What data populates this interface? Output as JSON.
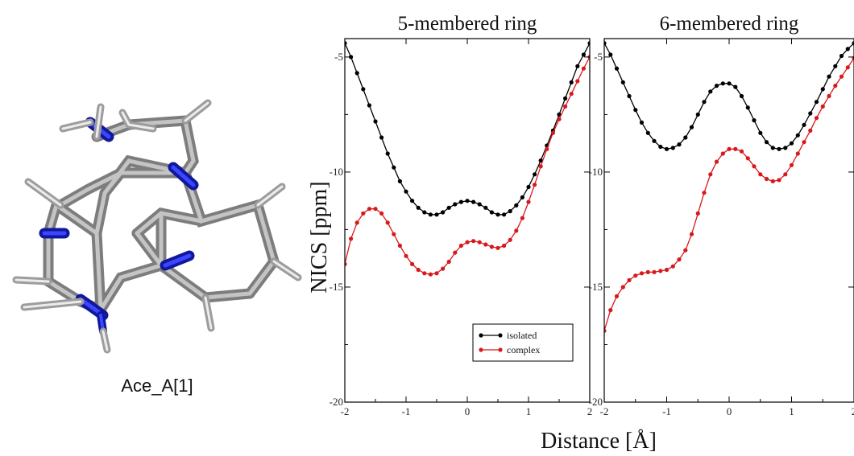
{
  "molecule": {
    "label": "Ace_A[1]"
  },
  "ylabel": "NICS [ppm]",
  "xlabel": "Distance [Å]",
  "colors": {
    "isolated": "#000000",
    "complex": "#d7191c",
    "nitrogen": "#1f2bd6",
    "carbon": "#9a9a9a",
    "hydrogen": "#e6e6e6"
  },
  "chart_data": [
    {
      "type": "line",
      "title": "5-membered ring",
      "xlim": [
        -2,
        2
      ],
      "ylim": [
        -20,
        -4.2
      ],
      "xticks": [
        -2,
        -1,
        0,
        1,
        2
      ],
      "yticks": [
        -20,
        -15,
        -10,
        -5
      ],
      "legend": {
        "placement": "bottom-right",
        "entries": [
          "isolated",
          "complex"
        ]
      },
      "series": [
        {
          "name": "isolated",
          "color": "#000000",
          "points": [
            [
              -2.0,
              -4.4
            ],
            [
              -1.9,
              -5.0
            ],
            [
              -1.8,
              -5.7
            ],
            [
              -1.7,
              -6.4
            ],
            [
              -1.6,
              -7.1
            ],
            [
              -1.5,
              -7.8
            ],
            [
              -1.4,
              -8.5
            ],
            [
              -1.3,
              -9.2
            ],
            [
              -1.2,
              -9.8
            ],
            [
              -1.1,
              -10.4
            ],
            [
              -1.0,
              -10.85
            ],
            [
              -0.9,
              -11.25
            ],
            [
              -0.8,
              -11.55
            ],
            [
              -0.7,
              -11.75
            ],
            [
              -0.6,
              -11.85
            ],
            [
              -0.5,
              -11.85
            ],
            [
              -0.4,
              -11.75
            ],
            [
              -0.3,
              -11.55
            ],
            [
              -0.2,
              -11.4
            ],
            [
              -0.1,
              -11.3
            ],
            [
              0.0,
              -11.25
            ],
            [
              0.1,
              -11.3
            ],
            [
              0.2,
              -11.4
            ],
            [
              0.3,
              -11.55
            ],
            [
              0.4,
              -11.75
            ],
            [
              0.5,
              -11.85
            ],
            [
              0.6,
              -11.85
            ],
            [
              0.7,
              -11.7
            ],
            [
              0.8,
              -11.45
            ],
            [
              0.9,
              -11.1
            ],
            [
              1.0,
              -10.65
            ],
            [
              1.1,
              -10.1
            ],
            [
              1.2,
              -9.5
            ],
            [
              1.3,
              -8.85
            ],
            [
              1.4,
              -8.2
            ],
            [
              1.5,
              -7.5
            ],
            [
              1.6,
              -6.8
            ],
            [
              1.7,
              -6.1
            ],
            [
              1.8,
              -5.4
            ],
            [
              1.9,
              -4.9
            ],
            [
              2.0,
              -4.4
            ]
          ]
        },
        {
          "name": "complex",
          "color": "#d7191c",
          "points": [
            [
              -2.0,
              -14.0
            ],
            [
              -1.9,
              -12.9
            ],
            [
              -1.8,
              -12.2
            ],
            [
              -1.7,
              -11.8
            ],
            [
              -1.6,
              -11.6
            ],
            [
              -1.5,
              -11.6
            ],
            [
              -1.4,
              -11.8
            ],
            [
              -1.3,
              -12.2
            ],
            [
              -1.2,
              -12.7
            ],
            [
              -1.1,
              -13.2
            ],
            [
              -1.0,
              -13.65
            ],
            [
              -0.9,
              -14.0
            ],
            [
              -0.8,
              -14.25
            ],
            [
              -0.7,
              -14.4
            ],
            [
              -0.6,
              -14.45
            ],
            [
              -0.5,
              -14.4
            ],
            [
              -0.4,
              -14.2
            ],
            [
              -0.3,
              -13.9
            ],
            [
              -0.2,
              -13.5
            ],
            [
              -0.1,
              -13.2
            ],
            [
              0.0,
              -13.05
            ],
            [
              0.1,
              -13.0
            ],
            [
              0.2,
              -13.05
            ],
            [
              0.3,
              -13.15
            ],
            [
              0.4,
              -13.25
            ],
            [
              0.5,
              -13.3
            ],
            [
              0.6,
              -13.2
            ],
            [
              0.7,
              -12.95
            ],
            [
              0.8,
              -12.55
            ],
            [
              0.9,
              -12.0
            ],
            [
              1.0,
              -11.3
            ],
            [
              1.1,
              -10.55
            ],
            [
              1.2,
              -9.75
            ],
            [
              1.3,
              -9.0
            ],
            [
              1.4,
              -8.3
            ],
            [
              1.5,
              -7.7
            ],
            [
              1.6,
              -7.15
            ],
            [
              1.7,
              -6.6
            ],
            [
              1.8,
              -6.05
            ],
            [
              1.9,
              -5.5
            ],
            [
              2.0,
              -5.0
            ]
          ]
        }
      ]
    },
    {
      "type": "line",
      "title": "6-membered ring",
      "xlim": [
        -2,
        2
      ],
      "ylim": [
        -20,
        -4.2
      ],
      "xticks": [
        -2,
        -1,
        0,
        1,
        2
      ],
      "yticks": [
        -20,
        -15,
        -10,
        -5
      ],
      "series": [
        {
          "name": "isolated",
          "color": "#000000",
          "points": [
            [
              -2.0,
              -4.4
            ],
            [
              -1.9,
              -4.9
            ],
            [
              -1.8,
              -5.5
            ],
            [
              -1.7,
              -6.1
            ],
            [
              -1.6,
              -6.7
            ],
            [
              -1.5,
              -7.3
            ],
            [
              -1.4,
              -7.85
            ],
            [
              -1.3,
              -8.3
            ],
            [
              -1.2,
              -8.65
            ],
            [
              -1.1,
              -8.9
            ],
            [
              -1.0,
              -9.0
            ],
            [
              -0.9,
              -8.95
            ],
            [
              -0.8,
              -8.8
            ],
            [
              -0.7,
              -8.5
            ],
            [
              -0.6,
              -8.05
            ],
            [
              -0.5,
              -7.5
            ],
            [
              -0.4,
              -6.95
            ],
            [
              -0.3,
              -6.5
            ],
            [
              -0.2,
              -6.25
            ],
            [
              -0.1,
              -6.15
            ],
            [
              0.0,
              -6.15
            ],
            [
              0.1,
              -6.3
            ],
            [
              0.2,
              -6.7
            ],
            [
              0.3,
              -7.2
            ],
            [
              0.4,
              -7.75
            ],
            [
              0.5,
              -8.3
            ],
            [
              0.6,
              -8.7
            ],
            [
              0.7,
              -8.95
            ],
            [
              0.8,
              -9.0
            ],
            [
              0.9,
              -8.95
            ],
            [
              1.0,
              -8.75
            ],
            [
              1.1,
              -8.4
            ],
            [
              1.2,
              -7.95
            ],
            [
              1.3,
              -7.45
            ],
            [
              1.4,
              -6.95
            ],
            [
              1.5,
              -6.4
            ],
            [
              1.6,
              -5.85
            ],
            [
              1.7,
              -5.4
            ],
            [
              1.8,
              -4.95
            ],
            [
              1.9,
              -4.65
            ],
            [
              2.0,
              -4.4
            ]
          ]
        },
        {
          "name": "complex",
          "color": "#d7191c",
          "points": [
            [
              -2.0,
              -16.9
            ],
            [
              -1.9,
              -16.0
            ],
            [
              -1.8,
              -15.4
            ],
            [
              -1.7,
              -15.0
            ],
            [
              -1.6,
              -14.7
            ],
            [
              -1.5,
              -14.5
            ],
            [
              -1.4,
              -14.4
            ],
            [
              -1.3,
              -14.35
            ],
            [
              -1.2,
              -14.35
            ],
            [
              -1.1,
              -14.3
            ],
            [
              -1.0,
              -14.25
            ],
            [
              -0.9,
              -14.1
            ],
            [
              -0.8,
              -13.8
            ],
            [
              -0.7,
              -13.4
            ],
            [
              -0.6,
              -12.7
            ],
            [
              -0.5,
              -11.8
            ],
            [
              -0.4,
              -10.9
            ],
            [
              -0.3,
              -10.1
            ],
            [
              -0.2,
              -9.55
            ],
            [
              -0.1,
              -9.2
            ],
            [
              0.0,
              -9.0
            ],
            [
              0.1,
              -9.0
            ],
            [
              0.2,
              -9.1
            ],
            [
              0.3,
              -9.4
            ],
            [
              0.4,
              -9.75
            ],
            [
              0.5,
              -10.1
            ],
            [
              0.6,
              -10.3
            ],
            [
              0.7,
              -10.4
            ],
            [
              0.8,
              -10.35
            ],
            [
              0.9,
              -10.1
            ],
            [
              1.0,
              -9.7
            ],
            [
              1.1,
              -9.2
            ],
            [
              1.2,
              -8.7
            ],
            [
              1.3,
              -8.2
            ],
            [
              1.4,
              -7.65
            ],
            [
              1.5,
              -7.15
            ],
            [
              1.6,
              -6.7
            ],
            [
              1.7,
              -6.25
            ],
            [
              1.8,
              -5.85
            ],
            [
              1.9,
              -5.45
            ],
            [
              2.0,
              -5.05
            ]
          ]
        }
      ]
    }
  ]
}
